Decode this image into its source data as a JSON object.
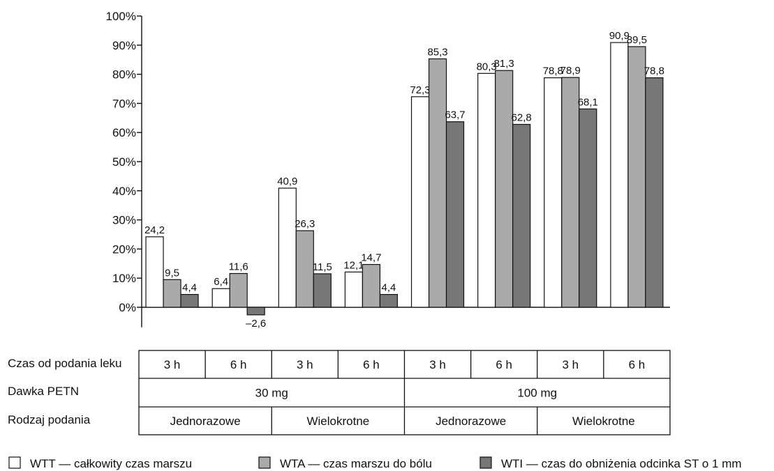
{
  "chart_data": {
    "type": "bar",
    "categories": [
      "3 h",
      "6 h",
      "3 h",
      "6 h",
      "3 h",
      "6 h",
      "3 h",
      "6 h"
    ],
    "series": [
      {
        "name": "WTT — całkowity czas marszu",
        "color": "#ffffff",
        "values": [
          24.2,
          6.4,
          40.9,
          12.1,
          72.3,
          80.3,
          78.8,
          90.9
        ],
        "labels": [
          "24,2",
          "6,4",
          "40,9",
          "12,1",
          "72,3",
          "80,3",
          "78,8",
          "90,9"
        ]
      },
      {
        "name": "WTA — czas marszu do bólu",
        "color": "#aaaaaa",
        "values": [
          9.5,
          11.6,
          26.3,
          14.7,
          85.3,
          81.3,
          78.9,
          89.5
        ],
        "labels": [
          "9,5",
          "11,6",
          "26,3",
          "14,7",
          "85,3",
          "81,3",
          "78,9",
          "89,5"
        ]
      },
      {
        "name": "WTI — czas do obniżenia odcinka ST o 1 mm",
        "color": "#777777",
        "values": [
          4.4,
          -2.6,
          11.5,
          4.4,
          63.7,
          62.8,
          68.1,
          78.8
        ],
        "labels": [
          "4,4",
          "–2,6",
          "11,5",
          "4,4",
          "63,7",
          "62,8",
          "68,1",
          "78,8"
        ]
      }
    ],
    "ylim": [
      -10,
      100
    ],
    "yticks": [
      0,
      10,
      20,
      30,
      40,
      50,
      60,
      70,
      80,
      90,
      100
    ],
    "ytick_labels": [
      "0%",
      "10%",
      "20%",
      "30%",
      "40%",
      "50%",
      "60%",
      "70%",
      "80%",
      "90%",
      "100%"
    ],
    "grid": false,
    "legend_position": "bottom",
    "table": {
      "rows": [
        {
          "label": "Czas od podania leku",
          "cells": [
            "3 h",
            "6 h",
            "3 h",
            "6 h",
            "3 h",
            "6 h",
            "3 h",
            "6 h"
          ]
        },
        {
          "label": "Dawka PETN",
          "cells": [
            "30 mg",
            "100 mg"
          ]
        },
        {
          "label": "Rodzaj podania",
          "cells": [
            "Jednorazowe",
            "Wielokrotne",
            "Jednorazowe",
            "Wielokrotne"
          ]
        }
      ]
    }
  }
}
